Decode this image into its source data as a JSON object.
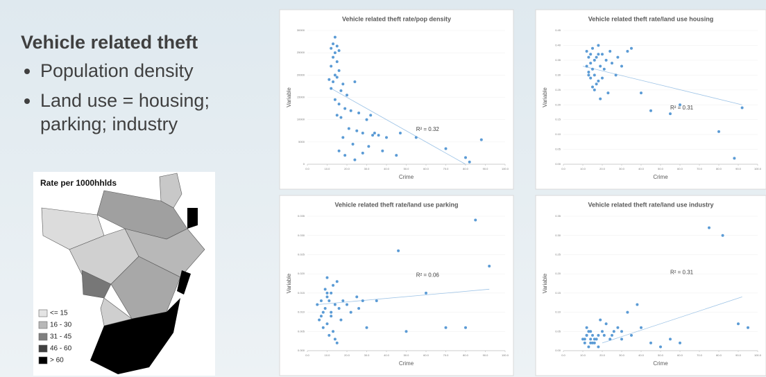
{
  "heading": "Vehicle related theft",
  "bullets": [
    "Population density",
    "Land use = housing; parking; industry"
  ],
  "map": {
    "title": "Rate per 1000hhlds",
    "legend": [
      "<= 15",
      "16 - 30",
      "31 - 45",
      "46 - 60",
      "> 60"
    ]
  },
  "chart_data": [
    {
      "type": "scatter",
      "title": "Vehicle related theft rate/pop density",
      "x_label": "Crime",
      "y_label": "Variable",
      "annotation": "R² = 0.32",
      "x": [
        14,
        13,
        15,
        12,
        14,
        16,
        13,
        15,
        12,
        14,
        16,
        11,
        13,
        15,
        18,
        24,
        12,
        17,
        20,
        14,
        16,
        19,
        22,
        15,
        17,
        26,
        30,
        32,
        21,
        25,
        28,
        33,
        34,
        36,
        18,
        23,
        31,
        40,
        47,
        55,
        16,
        19,
        28,
        38,
        45,
        70,
        80,
        88,
        82,
        24
      ],
      "series": [
        {
          "color": "#5b9bd5",
          "values": [
            28500,
            27000,
            26500,
            26000,
            25000,
            25500,
            24000,
            23000,
            22000,
            20000,
            21000,
            19000,
            18500,
            19500,
            18000,
            18500,
            17000,
            16500,
            15500,
            14500,
            13500,
            12500,
            12000,
            11000,
            10500,
            11500,
            10000,
            11000,
            8000,
            7500,
            7000,
            6500,
            7000,
            6500,
            6000,
            4500,
            4000,
            6000,
            7000,
            6000,
            3000,
            2000,
            2500,
            3000,
            2000,
            3500,
            1500,
            5500,
            500,
            1000
          ]
        }
      ],
      "trendline": {
        "x": [
          12,
          80
        ],
        "y": [
          17000,
          0
        ]
      },
      "xlim": [
        0,
        100
      ],
      "ylim": [
        0,
        30000
      ],
      "xticks": [
        {
          "value": 0,
          "label": "0.0"
        },
        {
          "value": 10,
          "label": "10.0"
        },
        {
          "value": 20,
          "label": "20.0"
        },
        {
          "value": 30,
          "label": "30.0"
        },
        {
          "value": 40,
          "label": "40.0"
        },
        {
          "value": 50,
          "label": "50.0"
        },
        {
          "value": 60,
          "label": "60.0"
        },
        {
          "value": 70,
          "label": "70.0"
        },
        {
          "value": 80,
          "label": "80.0"
        },
        {
          "value": 90,
          "label": "90.0"
        },
        {
          "value": 100,
          "label": "100.0"
        }
      ],
      "yticks": [
        0,
        5000,
        10000,
        15000,
        20000,
        25000,
        30000
      ]
    },
    {
      "type": "scatter",
      "title": "Vehicle related theft rate/land use housing",
      "x_label": "Crime",
      "y_label": "Variable",
      "annotation": "R² = 0.31",
      "x": [
        12,
        14,
        13,
        15,
        16,
        18,
        14,
        12,
        17,
        20,
        15,
        13,
        19,
        22,
        16,
        14,
        18,
        21,
        25,
        17,
        13,
        15,
        20,
        24,
        28,
        30,
        27,
        35,
        23,
        19,
        16,
        40,
        45,
        55,
        60,
        80,
        88,
        92,
        18,
        33
      ],
      "series": [
        {
          "color": "#5b9bd5",
          "values": [
            0.38,
            0.37,
            0.36,
            0.39,
            0.35,
            0.4,
            0.34,
            0.33,
            0.36,
            0.37,
            0.32,
            0.31,
            0.33,
            0.35,
            0.3,
            0.29,
            0.28,
            0.32,
            0.34,
            0.27,
            0.3,
            0.26,
            0.29,
            0.38,
            0.36,
            0.33,
            0.3,
            0.39,
            0.24,
            0.22,
            0.25,
            0.24,
            0.18,
            0.17,
            0.2,
            0.11,
            0.02,
            0.19,
            0.37,
            0.38
          ]
        }
      ],
      "trendline": {
        "x": [
          10,
          92
        ],
        "y": [
          0.33,
          0.2
        ]
      },
      "xlim": [
        0,
        100
      ],
      "ylim": [
        0,
        0.45
      ],
      "xticks": [
        {
          "value": 0,
          "label": "0.0"
        },
        {
          "value": 10,
          "label": "10.0"
        },
        {
          "value": 20,
          "label": "20.0"
        },
        {
          "value": 30,
          "label": "30.0"
        },
        {
          "value": 40,
          "label": "40.0"
        },
        {
          "value": 50,
          "label": "50.0"
        },
        {
          "value": 60,
          "label": "60.0"
        },
        {
          "value": 70,
          "label": "70.0"
        },
        {
          "value": 80,
          "label": "80.0"
        },
        {
          "value": 90,
          "label": "90.0"
        },
        {
          "value": 100,
          "label": "100.0"
        }
      ],
      "yticks": [
        {
          "value": 0,
          "label": "0.00"
        },
        {
          "value": 0.05,
          "label": "0.05"
        },
        {
          "value": 0.1,
          "label": "0.10"
        },
        {
          "value": 0.15,
          "label": "0.15"
        },
        {
          "value": 0.2,
          "label": "0.20"
        },
        {
          "value": 0.25,
          "label": "0.25"
        },
        {
          "value": 0.3,
          "label": "0.30"
        },
        {
          "value": 0.35,
          "label": "0.35"
        },
        {
          "value": 0.4,
          "label": "0.40"
        },
        {
          "value": 0.45,
          "label": "0.45"
        }
      ]
    },
    {
      "type": "scatter",
      "title": "Vehicle related theft rate/land use parking",
      "x_label": "Crime",
      "y_label": "Variable",
      "annotation": "R² = 0.06",
      "x": [
        5,
        8,
        10,
        12,
        7,
        9,
        11,
        13,
        15,
        6,
        8,
        10,
        14,
        16,
        12,
        9,
        11,
        13,
        7,
        10,
        18,
        20,
        22,
        25,
        28,
        30,
        15,
        17,
        12,
        10,
        35,
        46,
        50,
        60,
        70,
        85,
        92,
        80,
        26,
        14
      ],
      "series": [
        {
          "color": "#5b9bd5",
          "values": [
            0.012,
            0.01,
            0.014,
            0.015,
            0.009,
            0.011,
            0.013,
            0.017,
            0.018,
            0.008,
            0.006,
            0.007,
            0.012,
            0.011,
            0.009,
            0.016,
            0.004,
            0.005,
            0.013,
            0.019,
            0.013,
            0.012,
            0.01,
            0.014,
            0.013,
            0.006,
            0.002,
            0.008,
            0.01,
            0.015,
            0.013,
            0.026,
            0.005,
            0.015,
            0.006,
            0.034,
            0.022,
            0.006,
            0.011,
            0.003
          ]
        }
      ],
      "trendline": {
        "x": [
          5,
          92
        ],
        "y": [
          0.012,
          0.016
        ]
      },
      "xlim": [
        0,
        100
      ],
      "ylim": [
        0,
        0.035
      ],
      "xticks": [
        {
          "value": 0,
          "label": "0.0"
        },
        {
          "value": 10,
          "label": "10.0"
        },
        {
          "value": 20,
          "label": "20.0"
        },
        {
          "value": 30,
          "label": "30.0"
        },
        {
          "value": 40,
          "label": "40.0"
        },
        {
          "value": 50,
          "label": "50.0"
        },
        {
          "value": 60,
          "label": "60.0"
        },
        {
          "value": 70,
          "label": "70.0"
        },
        {
          "value": 80,
          "label": "80.0"
        },
        {
          "value": 90,
          "label": "90.0"
        },
        {
          "value": 100,
          "label": "100.0"
        }
      ],
      "yticks": [
        {
          "value": 0,
          "label": "0.000"
        },
        {
          "value": 0.005,
          "label": "0.005"
        },
        {
          "value": 0.01,
          "label": "0.010"
        },
        {
          "value": 0.015,
          "label": "0.015"
        },
        {
          "value": 0.02,
          "label": "0.020"
        },
        {
          "value": 0.025,
          "label": "0.025"
        },
        {
          "value": 0.03,
          "label": "0.030"
        },
        {
          "value": 0.035,
          "label": "0.035"
        }
      ]
    },
    {
      "type": "scatter",
      "title": "Vehicle related theft rate/land use industry",
      "x_label": "Crime",
      "y_label": "Variable",
      "annotation": "R² = 0.31",
      "x": [
        10,
        12,
        14,
        11,
        13,
        15,
        16,
        12,
        14,
        18,
        20,
        17,
        13,
        15,
        22,
        25,
        19,
        11,
        14,
        16,
        28,
        30,
        33,
        38,
        35,
        40,
        45,
        50,
        55,
        60,
        75,
        82,
        90,
        95,
        24,
        21,
        18,
        26,
        12,
        30
      ],
      "series": [
        {
          "color": "#5b9bd5",
          "values": [
            0.03,
            0.04,
            0.03,
            0.02,
            0.05,
            0.04,
            0.03,
            0.06,
            0.02,
            0.04,
            0.05,
            0.03,
            0.01,
            0.02,
            0.07,
            0.04,
            0.08,
            0.03,
            0.05,
            0.02,
            0.06,
            0.05,
            0.1,
            0.12,
            0.04,
            0.06,
            0.02,
            0.01,
            0.03,
            0.02,
            0.32,
            0.3,
            0.07,
            0.06,
            0.03,
            0.04,
            0.01,
            0.05,
            0.04,
            0.03
          ]
        }
      ],
      "trendline": {
        "x": [
          20,
          92
        ],
        "y": [
          0.02,
          0.14
        ]
      },
      "xlim": [
        0,
        100
      ],
      "ylim": [
        0,
        0.35
      ],
      "xticks": [
        {
          "value": 0,
          "label": "0.0"
        },
        {
          "value": 10,
          "label": "10.0"
        },
        {
          "value": 20,
          "label": "20.0"
        },
        {
          "value": 30,
          "label": "30.0"
        },
        {
          "value": 40,
          "label": "40.0"
        },
        {
          "value": 50,
          "label": "50.0"
        },
        {
          "value": 60,
          "label": "60.0"
        },
        {
          "value": 70,
          "label": "70.0"
        },
        {
          "value": 80,
          "label": "80.0"
        },
        {
          "value": 90,
          "label": "90.0"
        },
        {
          "value": 100,
          "label": "100.0"
        }
      ],
      "yticks": [
        {
          "value": 0,
          "label": "0.00"
        },
        {
          "value": 0.05,
          "label": "0.05"
        },
        {
          "value": 0.1,
          "label": "0.10"
        },
        {
          "value": 0.15,
          "label": "0.15"
        },
        {
          "value": 0.2,
          "label": "0.20"
        },
        {
          "value": 0.25,
          "label": "0.25"
        },
        {
          "value": 0.3,
          "label": "0.30"
        },
        {
          "value": 0.35,
          "label": "0.35"
        }
      ]
    }
  ]
}
